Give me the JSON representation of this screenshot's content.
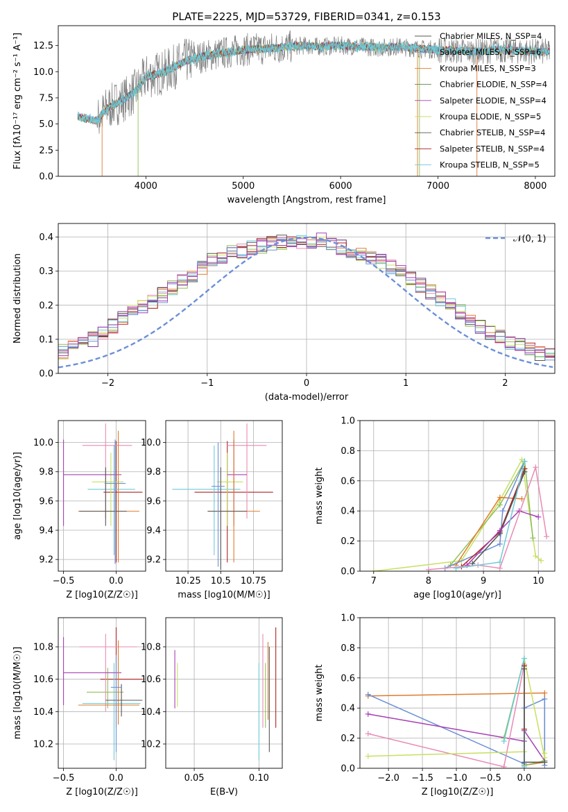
{
  "colors": [
    "#6b8fd6",
    "#e07b2c",
    "#8fbf5a",
    "#7a3c8c",
    "#b02020",
    "#6ecad6",
    "#e88ab4",
    "#c6e060",
    "#555555",
    "#a63fb5"
  ],
  "chart_data": [
    {
      "id": "spectrum",
      "type": "line",
      "title": "PLATE=2225, MJD=53729, FIBERID=0341, z=0.153",
      "xlabel": "wavelength [Angstrom, rest frame]",
      "ylabel": "Flux [fλ10⁻¹⁷ erg cm⁻² s⁻¹ A⁻¹]",
      "xlim": [
        3100,
        8200
      ],
      "ylim": [
        0,
        14.4
      ],
      "xticks": [
        4000,
        5000,
        6000,
        7000,
        8000
      ],
      "yticks": [
        0.0,
        2.5,
        5.0,
        7.5,
        10.0,
        12.5
      ],
      "legend_position": "upper-right",
      "legend": [
        "Chabrier MILES, N_SSP=4",
        "Salpeter MILES, N_SSP=6",
        "Kroupa MILES, N_SSP=3",
        "Chabrier ELODIE, N_SSP=4",
        "Salpeter ELODIE, N_SSP=4",
        "Kroupa ELODIE, N_SSP=5",
        "Chabrier STELIB, N_SSP=4",
        "Salpeter STELIB, N_SSP=4",
        "Kroupa STELIB, N_SSP=5"
      ],
      "legend_colors": [
        "#555555",
        "#6b8fd6",
        "#e07b2c",
        "#5a8a4a",
        "#a63fb5",
        "#c6e060",
        "#555555",
        "#b02020",
        "#6ecad6"
      ],
      "continuum": [
        [
          3300,
          5.7
        ],
        [
          3500,
          5.3
        ],
        [
          3600,
          6.5
        ],
        [
          3800,
          7.5
        ],
        [
          3900,
          8.2
        ],
        [
          4000,
          9.5
        ],
        [
          4200,
          10.0
        ],
        [
          4400,
          11.0
        ],
        [
          4600,
          11.5
        ],
        [
          4800,
          11.8
        ],
        [
          5000,
          12.1
        ],
        [
          5200,
          12.2
        ],
        [
          5400,
          12.3
        ],
        [
          5600,
          12.5
        ],
        [
          5800,
          12.4
        ],
        [
          6000,
          12.5
        ],
        [
          6200,
          12.4
        ],
        [
          6400,
          12.3
        ],
        [
          6600,
          12.4
        ],
        [
          6800,
          12.2
        ],
        [
          7000,
          12.1
        ],
        [
          7200,
          12.0
        ],
        [
          7400,
          11.9
        ],
        [
          7600,
          12.1
        ],
        [
          7800,
          12.0
        ],
        [
          8000,
          11.9
        ],
        [
          8150,
          11.9
        ]
      ]
    },
    {
      "id": "residuals",
      "type": "line",
      "xlabel": "(data-model)/error",
      "ylabel": "Normed distribution",
      "xlim": [
        -2.5,
        2.5
      ],
      "ylim": [
        0,
        0.44
      ],
      "xticks": [
        -2,
        -1,
        0,
        1,
        2
      ],
      "yticks": [
        0.0,
        0.1,
        0.2,
        0.3,
        0.4
      ],
      "legend": [
        "𝒩(0, 1)"
      ],
      "bin_width": 0.1,
      "histogram_mean": [
        0.04,
        0.038,
        0.04,
        0.045,
        0.05,
        0.055,
        0.065,
        0.075,
        0.085,
        0.1,
        0.12,
        0.14,
        0.16,
        0.18,
        0.2,
        0.21,
        0.23,
        0.25,
        0.27,
        0.29,
        0.31,
        0.33,
        0.34,
        0.355,
        0.36,
        0.37,
        0.375,
        0.38,
        0.385,
        0.38,
        0.385,
        0.39,
        0.39,
        0.38,
        0.37,
        0.36,
        0.35,
        0.34,
        0.33,
        0.31,
        0.3,
        0.28,
        0.26,
        0.24,
        0.22,
        0.2,
        0.18,
        0.16,
        0.14,
        0.12,
        0.105,
        0.09,
        0.08,
        0.07,
        0.06,
        0.055,
        0.05,
        0.045,
        0.04,
        0.038,
        0.035,
        0.032
      ]
    },
    {
      "id": "age-vs-Z",
      "type": "scatter",
      "xlabel": "Z [log10(Z/Z☉)]",
      "ylabel": "age  [log10(age/yr)]",
      "xlim": [
        -0.55,
        0.28
      ],
      "ylim": [
        9.12,
        10.15
      ],
      "xticks": [
        -0.5,
        0.0
      ],
      "yticks": [
        9.2,
        9.4,
        9.6,
        9.8,
        10.0
      ],
      "points": [
        {
          "x": 0.0,
          "y": 9.66,
          "xerr": [
            0.12,
            0.25
          ],
          "yerr": [
            0.48,
            0.35
          ],
          "c": "#b02020"
        },
        {
          "x": -0.02,
          "y": 9.68,
          "xerr": [
            0.25,
            0.2
          ],
          "yerr": [
            0.45,
            0.3
          ],
          "c": "#6ecad6"
        },
        {
          "x": -0.05,
          "y": 9.73,
          "xerr": [
            0.18,
            0.12
          ],
          "yerr": [
            0.3,
            0.2
          ],
          "c": "#c6e060"
        },
        {
          "x": -0.1,
          "y": 9.98,
          "xerr": [
            0.22,
            0.25
          ],
          "yerr": [
            0.5,
            0.15
          ],
          "c": "#e88ab4"
        },
        {
          "x": -0.5,
          "y": 9.78,
          "xerr": [
            0.0,
            0.55
          ],
          "yerr": [
            0.35,
            0.24
          ],
          "c": "#a63fb5"
        },
        {
          "x": 0.02,
          "y": 9.53,
          "xerr": [
            0.38,
            0.2
          ],
          "yerr": [
            0.35,
            0.55
          ],
          "c": "#e07b2c"
        },
        {
          "x": -0.1,
          "y": 9.53,
          "xerr": [
            0.25,
            0.2
          ],
          "yerr": [
            0.1,
            0.3
          ],
          "c": "#555555"
        },
        {
          "x": -0.01,
          "y": 9.72,
          "xerr": [
            0.1,
            0.1
          ],
          "yerr": [
            0.55,
            0.3
          ],
          "c": "#6b8fd6"
        }
      ]
    },
    {
      "id": "age-vs-mass",
      "type": "scatter",
      "xlabel": "mass [log10(M/M☉)]",
      "xlim": [
        10.08,
        10.97
      ],
      "ylim": [
        9.12,
        10.15
      ],
      "xticks": [
        10.25,
        10.5,
        10.75
      ],
      "yticks": [
        9.2,
        9.4,
        9.6,
        9.8,
        10.0
      ],
      "points": [
        {
          "x": 10.55,
          "y": 9.66,
          "xerr": [
            0.25,
            0.35
          ],
          "yerr": [
            0.48,
            0.35
          ],
          "c": "#b02020"
        },
        {
          "x": 10.45,
          "y": 9.68,
          "xerr": [
            0.32,
            0.2
          ],
          "yerr": [
            0.45,
            0.3
          ],
          "c": "#6ecad6"
        },
        {
          "x": 10.55,
          "y": 9.73,
          "xerr": [
            0.08,
            0.12
          ],
          "yerr": [
            0.3,
            0.2
          ],
          "c": "#c6e060"
        },
        {
          "x": 10.7,
          "y": 9.98,
          "xerr": [
            0.15,
            0.15
          ],
          "yerr": [
            0.5,
            0.15
          ],
          "c": "#e88ab4"
        },
        {
          "x": 10.6,
          "y": 9.78,
          "xerr": [
            0.05,
            0.1
          ],
          "yerr": [
            0.35,
            0.24
          ],
          "c": "#a63fb5"
        },
        {
          "x": 10.6,
          "y": 9.53,
          "xerr": [
            0.2,
            0.2
          ],
          "yerr": [
            0.35,
            0.55
          ],
          "c": "#e07b2c"
        },
        {
          "x": 10.5,
          "y": 9.53,
          "xerr": [
            0.1,
            0.2
          ],
          "yerr": [
            0.4,
            0.3
          ],
          "c": "#555555"
        },
        {
          "x": 10.48,
          "y": 9.7,
          "xerr": [
            0.05,
            0.05
          ],
          "yerr": [
            0.55,
            0.3
          ],
          "c": "#6b8fd6"
        }
      ]
    },
    {
      "id": "mass-weight-vs-age",
      "type": "line",
      "xlabel": "age  [log10(age/yr)]",
      "ylabel": "mass weight",
      "xlim": [
        6.75,
        10.3
      ],
      "ylim": [
        0,
        1.0
      ],
      "xticks": [
        7,
        8,
        9,
        10
      ],
      "yticks": [
        0.0,
        0.2,
        0.4,
        0.6,
        0.8,
        1.0
      ],
      "series": [
        {
          "c": "#c6e060",
          "pts": [
            [
              7.0,
              0.0
            ],
            [
              8.6,
              0.07
            ],
            [
              9.3,
              0.47
            ],
            [
              9.7,
              0.74
            ],
            [
              9.95,
              0.1
            ],
            [
              10.05,
              0.07
            ]
          ]
        },
        {
          "c": "#8fbf5a",
          "pts": [
            [
              8.4,
              0.04
            ],
            [
              9.3,
              0.44
            ],
            [
              9.75,
              0.73
            ],
            [
              9.9,
              0.22
            ]
          ]
        },
        {
          "c": "#e07b2c",
          "pts": [
            [
              8.5,
              0.04
            ],
            [
              9.3,
              0.49
            ],
            [
              9.7,
              0.48
            ]
          ]
        },
        {
          "c": "#6b8fd6",
          "pts": [
            [
              8.3,
              0.02
            ],
            [
              9.3,
              0.18
            ],
            [
              9.35,
              0.4
            ],
            [
              9.75,
              0.73
            ]
          ]
        },
        {
          "c": "#b02020",
          "pts": [
            [
              8.6,
              0.03
            ],
            [
              9.3,
              0.26
            ],
            [
              9.75,
              0.68
            ]
          ]
        },
        {
          "c": "#555555",
          "pts": [
            [
              8.8,
              0.05
            ],
            [
              9.3,
              0.25
            ],
            [
              9.75,
              0.66
            ]
          ]
        },
        {
          "c": "#a63fb5",
          "pts": [
            [
              8.7,
              0.04
            ],
            [
              9.3,
              0.27
            ],
            [
              9.65,
              0.4
            ],
            [
              10.0,
              0.36
            ]
          ]
        },
        {
          "c": "#e88ab4",
          "pts": [
            [
              8.0,
              0.01
            ],
            [
              8.9,
              0.04
            ],
            [
              9.3,
              0.02
            ],
            [
              9.95,
              0.69
            ],
            [
              10.15,
              0.23
            ]
          ]
        },
        {
          "c": "#6ecad6",
          "pts": [
            [
              8.5,
              0.02
            ],
            [
              9.3,
              0.06
            ],
            [
              9.75,
              0.73
            ]
          ]
        }
      ]
    },
    {
      "id": "mass-vs-Z",
      "type": "scatter",
      "xlabel": "Z [log10(Z/Z☉)]",
      "ylabel": "mass [log10(M/M☉)]",
      "xlim": [
        -0.55,
        0.28
      ],
      "ylim": [
        10.05,
        10.98
      ],
      "xticks": [
        -0.5,
        0.0
      ],
      "yticks": [
        10.2,
        10.4,
        10.6,
        10.8
      ],
      "points": [
        {
          "x": 0.0,
          "y": 10.6,
          "xerr": [
            0.15,
            0.25
          ],
          "yerr": [
            0.3,
            0.32
          ],
          "c": "#b02020"
        },
        {
          "x": -0.02,
          "y": 10.45,
          "xerr": [
            0.3,
            0.25
          ],
          "yerr": [
            0.35,
            0.25
          ],
          "c": "#6ecad6"
        },
        {
          "x": -0.08,
          "y": 10.52,
          "xerr": [
            0.2,
            0.15
          ],
          "yerr": [
            0.1,
            0.15
          ],
          "c": "#8fbf5a"
        },
        {
          "x": -0.1,
          "y": 10.8,
          "xerr": [
            0.25,
            0.3
          ],
          "yerr": [
            0.4,
            0.08
          ],
          "c": "#e88ab4"
        },
        {
          "x": -0.5,
          "y": 10.64,
          "xerr": [
            0.0,
            0.55
          ],
          "yerr": [
            0.2,
            0.22
          ],
          "c": "#a63fb5"
        },
        {
          "x": 0.02,
          "y": 10.44,
          "xerr": [
            0.38,
            0.2
          ],
          "yerr": [
            0.12,
            0.4
          ],
          "c": "#e07b2c"
        },
        {
          "x": 0.05,
          "y": 10.47,
          "xerr": [
            0.15,
            0.2
          ],
          "yerr": [
            0.1,
            0.1
          ],
          "c": "#555555"
        },
        {
          "x": 0.0,
          "y": 10.55,
          "xerr": [
            0.05,
            0.05
          ],
          "yerr": [
            0.4,
            0.2
          ],
          "c": "#6b8fd6"
        }
      ]
    },
    {
      "id": "mass-vs-EBV",
      "type": "scatter",
      "xlabel": "E(B-V)",
      "xlim": [
        0.028,
        0.118
      ],
      "ylim": [
        10.05,
        10.98
      ],
      "xticks": [
        0.05,
        0.1
      ],
      "yticks": [
        10.2,
        10.4,
        10.6,
        10.8
      ],
      "points": [
        {
          "x": 0.035,
          "y": 10.6,
          "yerr": [
            0.18,
            0.18
          ],
          "c": "#a63fb5"
        },
        {
          "x": 0.037,
          "y": 10.55,
          "yerr": [
            0.12,
            0.15
          ],
          "c": "#c6e060"
        },
        {
          "x": 0.1,
          "y": 10.4,
          "yerr": [
            0.3,
            0.3
          ],
          "c": "#6ecad6"
        },
        {
          "x": 0.103,
          "y": 10.6,
          "yerr": [
            0.3,
            0.28
          ],
          "c": "#e88ab4"
        },
        {
          "x": 0.105,
          "y": 10.5,
          "yerr": [
            0.2,
            0.2
          ],
          "c": "#8fbf5a"
        },
        {
          "x": 0.107,
          "y": 10.55,
          "yerr": [
            0.2,
            0.28
          ],
          "c": "#e07b2c"
        },
        {
          "x": 0.108,
          "y": 10.5,
          "yerr": [
            0.35,
            0.3
          ],
          "c": "#555555"
        },
        {
          "x": 0.113,
          "y": 10.6,
          "yerr": [
            0.3,
            0.32
          ],
          "c": "#b02020"
        }
      ]
    },
    {
      "id": "mass-weight-vs-Z",
      "type": "line",
      "xlabel": "Z [log10(Z/Z☉)]",
      "ylabel": "mass weight",
      "xlim": [
        -2.42,
        0.45
      ],
      "ylim": [
        0,
        1.0
      ],
      "xticks": [
        -2.0,
        -1.5,
        -1.0,
        -0.5,
        0.0
      ],
      "yticks": [
        0.0,
        0.2,
        0.4,
        0.6,
        0.8,
        1.0
      ],
      "series": [
        {
          "c": "#e07b2c",
          "pts": [
            [
              -2.3,
              0.48
            ],
            [
              0.3,
              0.5
            ],
            [
              0.3,
              0.04
            ],
            [
              0.0,
              0.02
            ]
          ]
        },
        {
          "c": "#6b8fd6",
          "pts": [
            [
              -2.3,
              0.49
            ],
            [
              0.0,
              0.03
            ],
            [
              0.0,
              0.4
            ],
            [
              0.3,
              0.46
            ],
            [
              0.3,
              0.02
            ]
          ]
        },
        {
          "c": "#a63fb5",
          "pts": [
            [
              -2.3,
              0.36
            ],
            [
              0.0,
              0.18
            ],
            [
              0.0,
              0.25
            ],
            [
              0.3,
              0.05
            ]
          ]
        },
        {
          "c": "#e88ab4",
          "pts": [
            [
              -2.3,
              0.23
            ],
            [
              -0.3,
              0.01
            ],
            [
              0.0,
              0.69
            ],
            [
              0.0,
              0.02
            ]
          ]
        },
        {
          "c": "#c6e060",
          "pts": [
            [
              -2.3,
              0.08
            ],
            [
              0.0,
              0.11
            ],
            [
              0.0,
              0.73
            ],
            [
              0.3,
              0.07
            ],
            [
              0.3,
              0.1
            ]
          ]
        },
        {
          "c": "#8fbf5a",
          "pts": [
            [
              -0.3,
              0.2
            ],
            [
              0.0,
              0.73
            ],
            [
              0.0,
              0.02
            ],
            [
              0.3,
              0.05
            ]
          ]
        },
        {
          "c": "#6ecad6",
          "pts": [
            [
              -0.3,
              0.18
            ],
            [
              0.0,
              0.73
            ],
            [
              0.0,
              0.01
            ]
          ]
        },
        {
          "c": "#b02020",
          "pts": [
            [
              0.0,
              0.68
            ],
            [
              0.0,
              0.26
            ]
          ]
        },
        {
          "c": "#555555",
          "pts": [
            [
              0.0,
              0.66
            ],
            [
              0.0,
              0.04
            ],
            [
              0.3,
              0.04
            ]
          ]
        }
      ]
    }
  ]
}
